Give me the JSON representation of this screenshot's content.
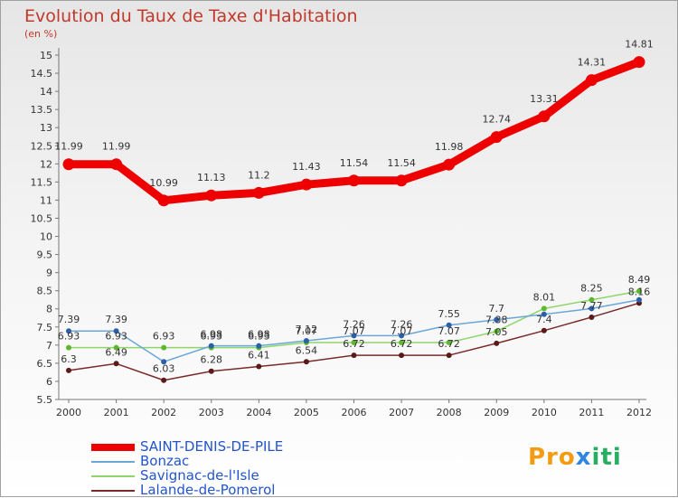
{
  "title": "Evolution du Taux de Taxe d'Habitation",
  "unit_label": "(en %)",
  "logo": {
    "parts": [
      "Pro",
      "x",
      "iti"
    ],
    "colors": [
      "#f39c12",
      "#2e86de",
      "#27ae60"
    ]
  },
  "chart_data": {
    "type": "line",
    "title": "Evolution du Taux de Taxe d'Habitation",
    "ylabel": "(en %)",
    "xlabel": "",
    "ylim": [
      5.5,
      15
    ],
    "y_ticks": [
      "5.5",
      "6",
      "6.5",
      "7",
      "7.5",
      "8",
      "8.5",
      "9",
      "9.5",
      "10",
      "10.5",
      "11",
      "11.5",
      "12",
      "12.5",
      "13",
      "13.5",
      "14",
      "14.5",
      "15"
    ],
    "x": [
      "2000",
      "2001",
      "2002",
      "2003",
      "2004",
      "2005",
      "2006",
      "2007",
      "2008",
      "2009",
      "2010",
      "2011",
      "2012"
    ],
    "grid": false,
    "legend_position": "bottom-left",
    "series": [
      {
        "name": "SAINT-DENIS-DE-PILE",
        "color": "#ee0000",
        "width": 9,
        "values": [
          11.99,
          11.99,
          10.99,
          11.13,
          11.2,
          11.43,
          11.54,
          11.54,
          11.98,
          12.74,
          13.31,
          14.31,
          14.81
        ],
        "labels": [
          "11.99",
          "11.99",
          "10.99",
          "11.13",
          "11.2",
          "11.43",
          "11.54",
          "11.54",
          "11.98",
          "12.74",
          "13.31",
          "14.31",
          "14.81"
        ]
      },
      {
        "name": "Bonzac",
        "color": "#6aa7d8",
        "width": 1.5,
        "marker": "#2b5fa8",
        "values": [
          7.39,
          7.39,
          6.54,
          6.98,
          6.98,
          7.12,
          7.26,
          7.26,
          7.55,
          7.7,
          7.85,
          8.01,
          8.25
        ],
        "labels": [
          "7.39",
          "7.39",
          "",
          "6.98",
          "6.98",
          "7.12",
          "7.26",
          "7.26",
          "7.55",
          "7.7",
          "",
          "",
          ""
        ]
      },
      {
        "name": "Savignac-de-l'Isle",
        "color": "#8fd66a",
        "width": 1.5,
        "marker": "#5cb82e",
        "values": [
          6.93,
          6.93,
          6.93,
          6.93,
          6.93,
          7.07,
          7.07,
          7.07,
          7.07,
          7.38,
          8.01,
          8.25,
          8.49
        ],
        "labels": [
          "6.93",
          "6.93",
          "6.93",
          "6.93",
          "6.93",
          "7.07",
          "7.07",
          "7.07",
          "7.07",
          "7.38",
          "8.01",
          "8.25",
          "8.49"
        ]
      },
      {
        "name": "Lalande-de-Pomerol",
        "color": "#7a2a2a",
        "width": 1.5,
        "marker": "#5a1a1a",
        "values": [
          6.3,
          6.49,
          6.03,
          6.28,
          6.41,
          6.54,
          6.72,
          6.72,
          6.72,
          7.05,
          7.4,
          7.77,
          8.16
        ],
        "labels": [
          "6.3",
          "6.49",
          "6.03",
          "6.28",
          "6.41",
          "6.54",
          "6.72",
          "6.72",
          "6.72",
          "7.05",
          "7.4",
          "7.77",
          "8.16"
        ]
      }
    ]
  }
}
